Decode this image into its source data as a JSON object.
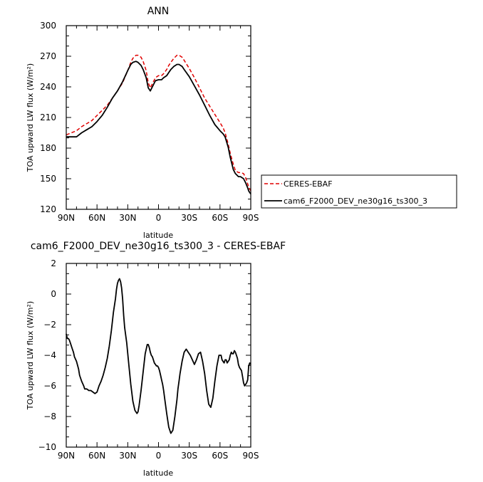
{
  "chart_data": [
    {
      "type": "line",
      "title": "ANN",
      "xlabel": "latitude",
      "ylabel": "TOA upward LW flux (W/m²)",
      "xlim": [
        90,
        -90
      ],
      "ylim": [
        120,
        300
      ],
      "xticks": [
        {
          "value": 90,
          "label": "90N"
        },
        {
          "value": 60,
          "label": "60N"
        },
        {
          "value": 30,
          "label": "30N"
        },
        {
          "value": 0,
          "label": "0"
        },
        {
          "value": -30,
          "label": "30S"
        },
        {
          "value": -60,
          "label": "60S"
        },
        {
          "value": -90,
          "label": "90S"
        }
      ],
      "yticks": [
        {
          "value": 120,
          "label": "120"
        },
        {
          "value": 150,
          "label": "150"
        },
        {
          "value": 180,
          "label": "180"
        },
        {
          "value": 210,
          "label": "210"
        },
        {
          "value": 240,
          "label": "240"
        },
        {
          "value": 270,
          "label": "270"
        },
        {
          "value": 300,
          "label": "300"
        }
      ],
      "legend": {
        "position": "right"
      },
      "series": [
        {
          "name": "CERES-EBAF",
          "color": "#e00000",
          "dash": "dashed",
          "x": [
            90,
            85,
            80,
            75,
            70,
            65,
            60,
            55,
            50,
            45,
            40,
            35,
            30,
            27,
            25,
            22,
            20,
            17,
            15,
            12,
            10,
            8,
            5,
            3,
            0,
            -3,
            -5,
            -8,
            -10,
            -12,
            -15,
            -18,
            -20,
            -23,
            -25,
            -30,
            -35,
            -40,
            -45,
            -50,
            -55,
            -60,
            -63,
            -65,
            -68,
            -70,
            -73,
            -75,
            -78,
            -80,
            -83,
            -85,
            -87,
            -88,
            -90
          ],
          "y": [
            193,
            195,
            197,
            201,
            204,
            207,
            212,
            217,
            222,
            229,
            236,
            244,
            256,
            264,
            268,
            271,
            271,
            269,
            265,
            256,
            244,
            239,
            245,
            249,
            251,
            251,
            253,
            257,
            261,
            264,
            268,
            271,
            271,
            269,
            266,
            258,
            249,
            239,
            229,
            221,
            213,
            205,
            200,
            195,
            184,
            175,
            164,
            158,
            156,
            156,
            155,
            151,
            145,
            142,
            138
          ]
        },
        {
          "name": "cam6_F2000_DEV_ne30g16_ts300_3",
          "color": "#000000",
          "dash": "solid",
          "x": [
            90,
            85,
            80,
            75,
            70,
            65,
            60,
            55,
            50,
            45,
            40,
            35,
            30,
            27,
            25,
            22,
            20,
            17,
            15,
            12,
            10,
            8,
            5,
            3,
            0,
            -3,
            -5,
            -8,
            -10,
            -12,
            -15,
            -18,
            -20,
            -23,
            -25,
            -30,
            -35,
            -40,
            -45,
            -50,
            -55,
            -60,
            -63,
            -65,
            -68,
            -70,
            -73,
            -75,
            -78,
            -80,
            -83,
            -85,
            -87,
            -88,
            -90
          ],
          "y": [
            191,
            191,
            191,
            195,
            198,
            201,
            206,
            212,
            220,
            229,
            236,
            245,
            256,
            262,
            264,
            265,
            264,
            261,
            257,
            249,
            239,
            236,
            242,
            246,
            247,
            247,
            249,
            251,
            254,
            257,
            260,
            262,
            262,
            260,
            257,
            250,
            241,
            232,
            222,
            212,
            203,
            197,
            194,
            191,
            181,
            171,
            159,
            155,
            152,
            152,
            150,
            146,
            141,
            138,
            135
          ]
        }
      ]
    },
    {
      "type": "line",
      "title": "cam6_F2000_DEV_ne30g16_ts300_3 - CERES-EBAF",
      "xlabel": "latitude",
      "ylabel": "TOA upward LW flux (W/m²)",
      "xlim": [
        90,
        -90
      ],
      "ylim": [
        -10,
        2
      ],
      "xticks": [
        {
          "value": 90,
          "label": "90N"
        },
        {
          "value": 60,
          "label": "60N"
        },
        {
          "value": 30,
          "label": "30N"
        },
        {
          "value": 0,
          "label": "0"
        },
        {
          "value": -30,
          "label": "30S"
        },
        {
          "value": -60,
          "label": "60S"
        },
        {
          "value": -90,
          "label": "90S"
        }
      ],
      "yticks": [
        {
          "value": -10,
          "label": "−10"
        },
        {
          "value": -8,
          "label": "−8"
        },
        {
          "value": -6,
          "label": "−6"
        },
        {
          "value": -4,
          "label": "−4"
        },
        {
          "value": -2,
          "label": "−2"
        },
        {
          "value": 0,
          "label": "0"
        },
        {
          "value": 2,
          "label": "2"
        }
      ],
      "series": [
        {
          "name": "",
          "color": "#000000",
          "dash": "solid",
          "x": [
            90,
            89,
            88,
            87,
            86,
            85,
            84,
            83,
            82,
            80,
            78,
            77,
            75,
            73,
            72,
            70,
            68,
            66,
            64,
            62,
            60,
            58,
            56,
            54,
            52,
            50,
            48,
            46,
            44,
            42,
            41,
            40,
            39,
            38,
            37,
            36,
            35,
            34,
            33,
            31,
            29,
            27,
            25,
            23,
            21,
            20,
            19,
            17,
            15,
            13,
            11,
            10,
            9,
            8,
            7,
            6,
            5,
            4,
            3,
            2,
            1,
            0,
            -1,
            -2,
            -3,
            -4,
            -5,
            -6,
            -8,
            -10,
            -12,
            -14,
            -16,
            -18,
            -19,
            -20,
            -21,
            -23,
            -25,
            -27,
            -29,
            -31,
            -33,
            -35,
            -37,
            -39,
            -41,
            -43,
            -45,
            -47,
            -49,
            -51,
            -53,
            -55,
            -57,
            -59,
            -61,
            -62,
            -63,
            -64,
            -65,
            -66,
            -67,
            -68,
            -69,
            -70,
            -71,
            -72,
            -73,
            -74,
            -75,
            -76,
            -77,
            -78,
            -79,
            -80,
            -81,
            -82,
            -83,
            -84,
            -85,
            -86,
            -87,
            -88,
            -89,
            -90
          ],
          "y": [
            -2.6,
            -2.9,
            -2.9,
            -3.0,
            -3.2,
            -3.4,
            -3.6,
            -3.8,
            -4.1,
            -4.4,
            -4.9,
            -5.3,
            -5.7,
            -6.0,
            -6.2,
            -6.2,
            -6.3,
            -6.3,
            -6.4,
            -6.5,
            -6.4,
            -6.0,
            -5.7,
            -5.3,
            -4.8,
            -4.2,
            -3.4,
            -2.4,
            -1.2,
            -0.3,
            0.3,
            0.7,
            0.9,
            1.0,
            0.8,
            0.4,
            -0.3,
            -1.4,
            -2.2,
            -3.2,
            -4.6,
            -5.9,
            -7.0,
            -7.6,
            -7.8,
            -7.7,
            -7.3,
            -6.3,
            -5.1,
            -3.9,
            -3.3,
            -3.3,
            -3.5,
            -3.8,
            -4.0,
            -4.1,
            -4.3,
            -4.5,
            -4.6,
            -4.7,
            -4.7,
            -4.8,
            -5.0,
            -5.3,
            -5.6,
            -5.9,
            -6.3,
            -6.8,
            -7.8,
            -8.7,
            -9.1,
            -8.9,
            -8.0,
            -6.9,
            -6.2,
            -5.7,
            -5.2,
            -4.4,
            -3.8,
            -3.6,
            -3.8,
            -4.0,
            -4.3,
            -4.6,
            -4.3,
            -3.9,
            -3.8,
            -4.4,
            -5.2,
            -6.3,
            -7.2,
            -7.4,
            -6.8,
            -5.7,
            -4.7,
            -4.0,
            -4.0,
            -4.3,
            -4.4,
            -4.5,
            -4.3,
            -4.3,
            -4.5,
            -4.4,
            -4.3,
            -4.0,
            -3.8,
            -3.9,
            -3.9,
            -3.7,
            -3.8,
            -4.0,
            -4.2,
            -4.6,
            -4.8,
            -4.9,
            -5.0,
            -5.4,
            -5.8,
            -6.0,
            -5.9,
            -5.8,
            -5.6,
            -4.7,
            -4.5,
            -4.6
          ]
        }
      ]
    }
  ]
}
